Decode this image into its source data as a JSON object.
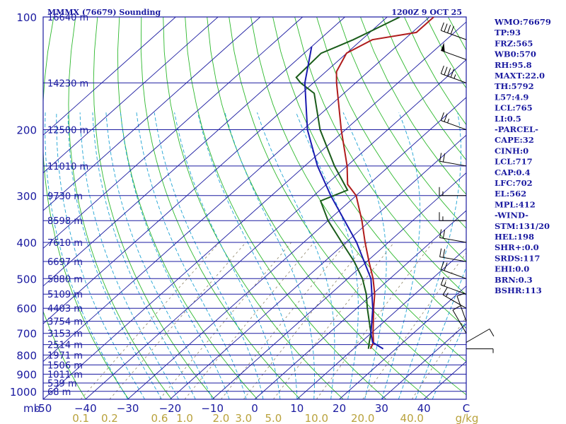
{
  "header": {
    "station": "MMMX (76679) Sounding",
    "time": "1200Z  9 OCT 25"
  },
  "colors": {
    "border": "#1a1aa0",
    "isobar": "#1a1aa0",
    "isotherm": "#1a1aa0",
    "dry_adiabat": "#2db82d",
    "moist_adiabat": "#1fa3d4",
    "mixing_ratio": "#8c8264",
    "temperature": "#b01c1c",
    "dewpoint": "#1a5c1a",
    "parcel": "#1a1ab0",
    "wind": "#000000",
    "axis_text": "#1a1aa0",
    "mixing_text": "#b9a23c"
  },
  "chart_data": {
    "type": "skew-t",
    "title": "MMMX (76679) Sounding",
    "valid_time": "1200Z  9 OCT 25",
    "pressure_range_mb": [
      1050,
      100
    ],
    "temperature_range_c": [
      -50,
      50
    ],
    "pressure_ticks": [
      100,
      200,
      300,
      400,
      500,
      600,
      700,
      800,
      900,
      1000
    ],
    "pressure_axis_unit": "mb",
    "temperature_ticks": [
      -50,
      -40,
      -30,
      -20,
      -10,
      0,
      10,
      20,
      30,
      40
    ],
    "temperature_tick_labels": [
      "-50",
      "−40",
      "−30",
      "−20",
      "−10",
      "0",
      "10",
      "20",
      "30",
      "40"
    ],
    "temperature_axis_unit": "C",
    "mixing_ratio_lines": [
      0.1,
      0.2,
      0.6,
      1.0,
      2.0,
      3.0,
      5.0,
      10.0,
      20.0,
      40.0
    ],
    "mixing_ratio_labels": [
      "0.1",
      "0.2",
      "0.6",
      "1.0",
      "2.0",
      "3.0",
      "5.0",
      "10.0",
      "20.0",
      "40.0"
    ],
    "mixing_ratio_unit": "g/kg",
    "height_labels": [
      {
        "p": 100,
        "label": "16640 m"
      },
      {
        "p": 150,
        "label": "14230 m"
      },
      {
        "p": 200,
        "label": "12500 m"
      },
      {
        "p": 250,
        "label": "11010 m"
      },
      {
        "p": 300,
        "label": "9730 m"
      },
      {
        "p": 350,
        "label": "8598 m"
      },
      {
        "p": 400,
        "label": "7610 m"
      },
      {
        "p": 450,
        "label": "6697 m"
      },
      {
        "p": 500,
        "label": "5880 m"
      },
      {
        "p": 550,
        "label": "5109 m"
      },
      {
        "p": 600,
        "label": "4403 m"
      },
      {
        "p": 650,
        "label": "3754 m"
      },
      {
        "p": 700,
        "label": "3153 m"
      },
      {
        "p": 750,
        "label": "2514 m"
      },
      {
        "p": 800,
        "label": "1971 m"
      },
      {
        "p": 850,
        "label": "1506 m"
      },
      {
        "p": 900,
        "label": "1011 m"
      },
      {
        "p": 950,
        "label": "539 m"
      },
      {
        "p": 1000,
        "label": "68 m"
      }
    ],
    "series": [
      {
        "name": "temperature",
        "points": [
          {
            "p": 770,
            "t": 14.0
          },
          {
            "p": 740,
            "t": 13.0
          },
          {
            "p": 700,
            "t": 10.5
          },
          {
            "p": 600,
            "t": 4.0
          },
          {
            "p": 550,
            "t": 0.5
          },
          {
            "p": 500,
            "t": -4.0
          },
          {
            "p": 450,
            "t": -9.5
          },
          {
            "p": 400,
            "t": -15.5
          },
          {
            "p": 350,
            "t": -22.0
          },
          {
            "p": 300,
            "t": -30.0
          },
          {
            "p": 280,
            "t": -35.0
          },
          {
            "p": 250,
            "t": -40.0
          },
          {
            "p": 200,
            "t": -51.0
          },
          {
            "p": 150,
            "t": -64.5
          },
          {
            "p": 140,
            "t": -67.5
          },
          {
            "p": 125,
            "t": -70.0
          },
          {
            "p": 115,
            "t": -67.5
          },
          {
            "p": 110,
            "t": -59.0
          },
          {
            "p": 100,
            "t": -59.0
          }
        ]
      },
      {
        "name": "dewpoint",
        "points": [
          {
            "p": 770,
            "t": 13.5
          },
          {
            "p": 740,
            "t": 12.0
          },
          {
            "p": 700,
            "t": 10.0
          },
          {
            "p": 600,
            "t": 2.5
          },
          {
            "p": 550,
            "t": -1.5
          },
          {
            "p": 500,
            "t": -6.5
          },
          {
            "p": 450,
            "t": -13.0
          },
          {
            "p": 400,
            "t": -21.0
          },
          {
            "p": 350,
            "t": -30.0
          },
          {
            "p": 310,
            "t": -37.0
          },
          {
            "p": 290,
            "t": -33.5
          },
          {
            "p": 250,
            "t": -43.0
          },
          {
            "p": 200,
            "t": -56.0
          },
          {
            "p": 160,
            "t": -67.0
          },
          {
            "p": 150,
            "t": -73.0
          },
          {
            "p": 145,
            "t": -75.5
          },
          {
            "p": 125,
            "t": -76.0
          },
          {
            "p": 120,
            "t": -74.0
          },
          {
            "p": 115,
            "t": -72.0
          },
          {
            "p": 100,
            "t": -67.0
          }
        ]
      },
      {
        "name": "parcel",
        "points": [
          {
            "p": 770,
            "t": 17.0
          },
          {
            "p": 740,
            "t": 12.8
          },
          {
            "p": 700,
            "t": 10.0
          },
          {
            "p": 600,
            "t": 3.8
          },
          {
            "p": 500,
            "t": -4.5
          },
          {
            "p": 400,
            "t": -17.5
          },
          {
            "p": 300,
            "t": -36.0
          },
          {
            "p": 250,
            "t": -47.0
          },
          {
            "p": 200,
            "t": -59.0
          },
          {
            "p": 150,
            "t": -72.0
          },
          {
            "p": 120,
            "t": -80.0
          }
        ]
      }
    ]
  },
  "indices": [
    "WMO:76679",
    "TP:93",
    "FRZ:565",
    "WB0:570",
    "RH:95.8",
    "MAXT:22.0",
    "TH:5792",
    "L57:4.9",
    "LCL:765",
    "LI:0.5",
    "-PARCEL-",
    "CAPE:32",
    "CINH:0",
    "LCL:717",
    "CAP:0.4",
    "LFC:702",
    "EL:562",
    "MPL:412",
    "-WIND-",
    "STM:131/20",
    "HEL:198",
    "SHR+:0.0",
    "SRDS:117",
    "EHI:0.0",
    "BRN:0.3",
    "BSHR:113"
  ],
  "winds": [
    {
      "p": 115,
      "dir": 290,
      "spd": 40
    },
    {
      "p": 130,
      "dir": 290,
      "spd": 50
    },
    {
      "p": 150,
      "dir": 290,
      "spd": 45
    },
    {
      "p": 200,
      "dir": 290,
      "spd": 25
    },
    {
      "p": 250,
      "dir": 280,
      "spd": 20
    },
    {
      "p": 300,
      "dir": 270,
      "spd": 15
    },
    {
      "p": 350,
      "dir": 270,
      "spd": 15
    },
    {
      "p": 400,
      "dir": 280,
      "spd": 20
    },
    {
      "p": 450,
      "dir": 280,
      "spd": 20
    },
    {
      "p": 500,
      "dir": 290,
      "spd": 20
    },
    {
      "p": 550,
      "dir": 290,
      "spd": 15
    },
    {
      "p": 600,
      "dir": 300,
      "spd": 15
    },
    {
      "p": 650,
      "dir": 340,
      "spd": 10
    },
    {
      "p": 700,
      "dir": 330,
      "spd": 10
    },
    {
      "p": 740,
      "dir": 60,
      "spd": 10
    },
    {
      "p": 770,
      "dir": 90,
      "spd": 5
    }
  ]
}
